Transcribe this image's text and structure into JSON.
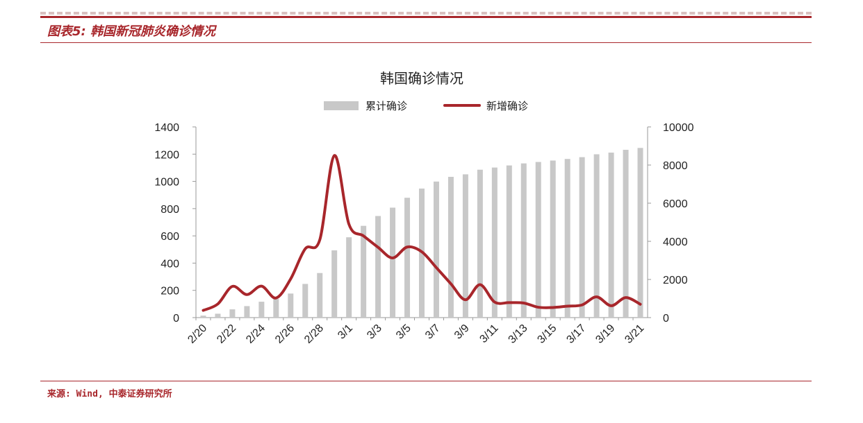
{
  "figure": {
    "title": "图表5: 韩国新冠肺炎确诊情况",
    "source": "来源: Wind, 中泰证券研究所"
  },
  "chart_data": {
    "type": "bar+line",
    "title": "韩国确诊情况",
    "x": [
      "2/20",
      "2/21",
      "2/22",
      "2/23",
      "2/24",
      "2/25",
      "2/26",
      "2/27",
      "2/28",
      "2/29",
      "3/1",
      "3/2",
      "3/3",
      "3/4",
      "3/5",
      "3/6",
      "3/7",
      "3/8",
      "3/9",
      "3/10",
      "3/11",
      "3/12",
      "3/13",
      "3/14",
      "3/15",
      "3/16",
      "3/17",
      "3/18",
      "3/19",
      "3/20",
      "3/21"
    ],
    "x_tick_labels": [
      "2/20",
      "2/22",
      "2/24",
      "2/26",
      "2/28",
      "3/1",
      "3/3",
      "3/5",
      "3/7",
      "3/9",
      "3/11",
      "3/13",
      "3/15",
      "3/17",
      "3/19",
      "3/21"
    ],
    "series": [
      {
        "name": "累计确诊",
        "type": "bar",
        "axis": "right",
        "color": "#c8c8c8",
        "values": [
          104,
          204,
          433,
          602,
          833,
          977,
          1261,
          1766,
          2337,
          3526,
          4212,
          4812,
          5328,
          5766,
          6284,
          6767,
          7134,
          7382,
          7513,
          7755,
          7869,
          7979,
          8086,
          8162,
          8236,
          8320,
          8413,
          8565,
          8652,
          8799,
          8897
        ]
      },
      {
        "name": "新增确诊",
        "type": "line",
        "axis": "left",
        "color": "#a8262b",
        "values": [
          53,
          100,
          229,
          169,
          231,
          144,
          284,
          505,
          571,
          1190,
          686,
          600,
          516,
          438,
          518,
          483,
          367,
          248,
          131,
          242,
          114,
          110,
          107,
          76,
          74,
          84,
          93,
          152,
          87,
          147,
          98
        ]
      }
    ],
    "y_left": {
      "min": 0,
      "max": 1400,
      "ticks": [
        0,
        200,
        400,
        600,
        800,
        1000,
        1200,
        1400
      ]
    },
    "y_right": {
      "min": 0,
      "max": 10000,
      "ticks": [
        0,
        2000,
        4000,
        6000,
        8000,
        10000
      ]
    },
    "legend_position": "top-center",
    "grid": false
  }
}
